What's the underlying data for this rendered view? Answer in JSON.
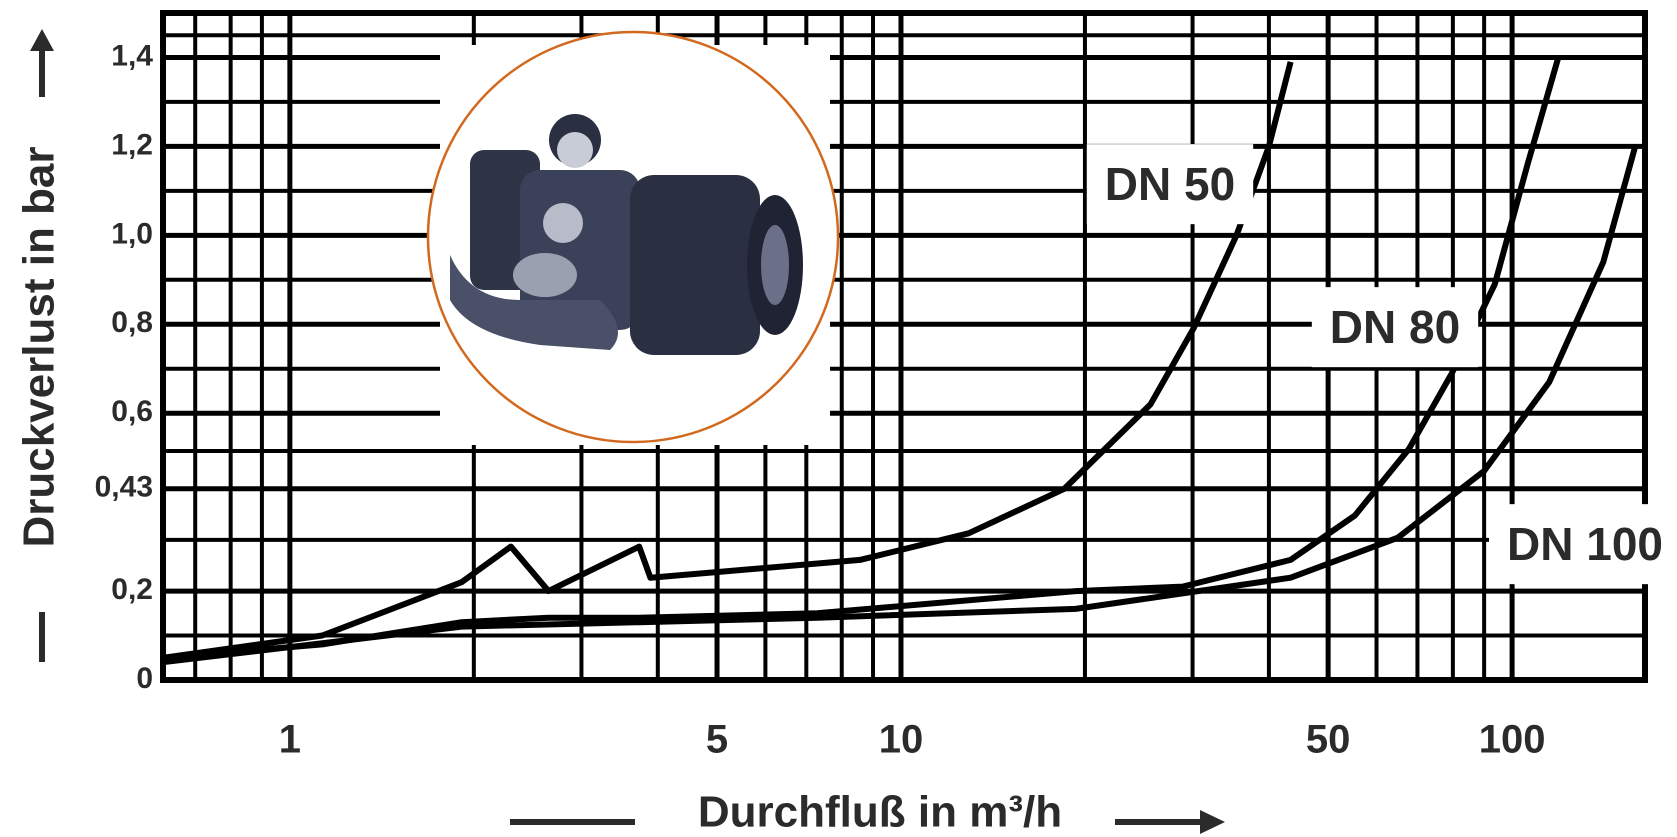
{
  "chart_data": {
    "type": "line",
    "x_label": "Durchfluß in m³/h",
    "y_label": "Druckverlust in bar",
    "x_log": true,
    "grid": true,
    "minor_grid": true,
    "xlim": [
      0.62,
      165
    ],
    "xticks": [
      1,
      5,
      10,
      50,
      100
    ],
    "ylim": [
      0,
      1.5
    ],
    "yticks": [
      0,
      {
        "value": 0.2,
        "label": "0,2"
      },
      {
        "value": 0.43,
        "label": "0,43"
      },
      {
        "value": 0.6,
        "label": "0,6"
      },
      {
        "value": 0.8,
        "label": "0,8"
      },
      {
        "value": 1.0,
        "label": "1,0"
      },
      {
        "value": 1.2,
        "label": "1,2"
      },
      {
        "value": 1.4,
        "label": "1,4"
      }
    ],
    "series": [
      {
        "name": "DN 50",
        "color": "#000000",
        "x": [
          0.62,
          1.13,
          1.91,
          2.3,
          2.65,
          3.73,
          3.89,
          8.57,
          12.9,
          18.5,
          25.6,
          30.1,
          35.4,
          40,
          43.4
        ],
        "values": [
          0.05,
          0.1,
          0.22,
          0.3,
          0.2,
          0.3,
          0.23,
          0.27,
          0.33,
          0.43,
          0.62,
          0.79,
          1.0,
          1.2,
          1.39
        ]
      },
      {
        "name": "DN 80",
        "color": "#000000",
        "x": [
          0.62,
          1.13,
          1.91,
          2.65,
          3.73,
          7.29,
          19.3,
          28.9,
          43.4,
          55.3,
          67.8,
          79.7,
          93.7,
          106,
          119
        ],
        "values": [
          0.05,
          0.08,
          0.13,
          0.14,
          0.14,
          0.15,
          0.2,
          0.21,
          0.27,
          0.37,
          0.52,
          0.69,
          0.89,
          1.16,
          1.4
        ]
      },
      {
        "name": "DN 100",
        "color": "#000000",
        "x": [
          0.62,
          1.91,
          3.73,
          7.29,
          19.3,
          43.4,
          65,
          90,
          115,
          141,
          159
        ],
        "values": [
          0.04,
          0.12,
          0.13,
          0.14,
          0.16,
          0.23,
          0.32,
          0.47,
          0.67,
          0.94,
          1.2
        ]
      }
    ]
  }
}
